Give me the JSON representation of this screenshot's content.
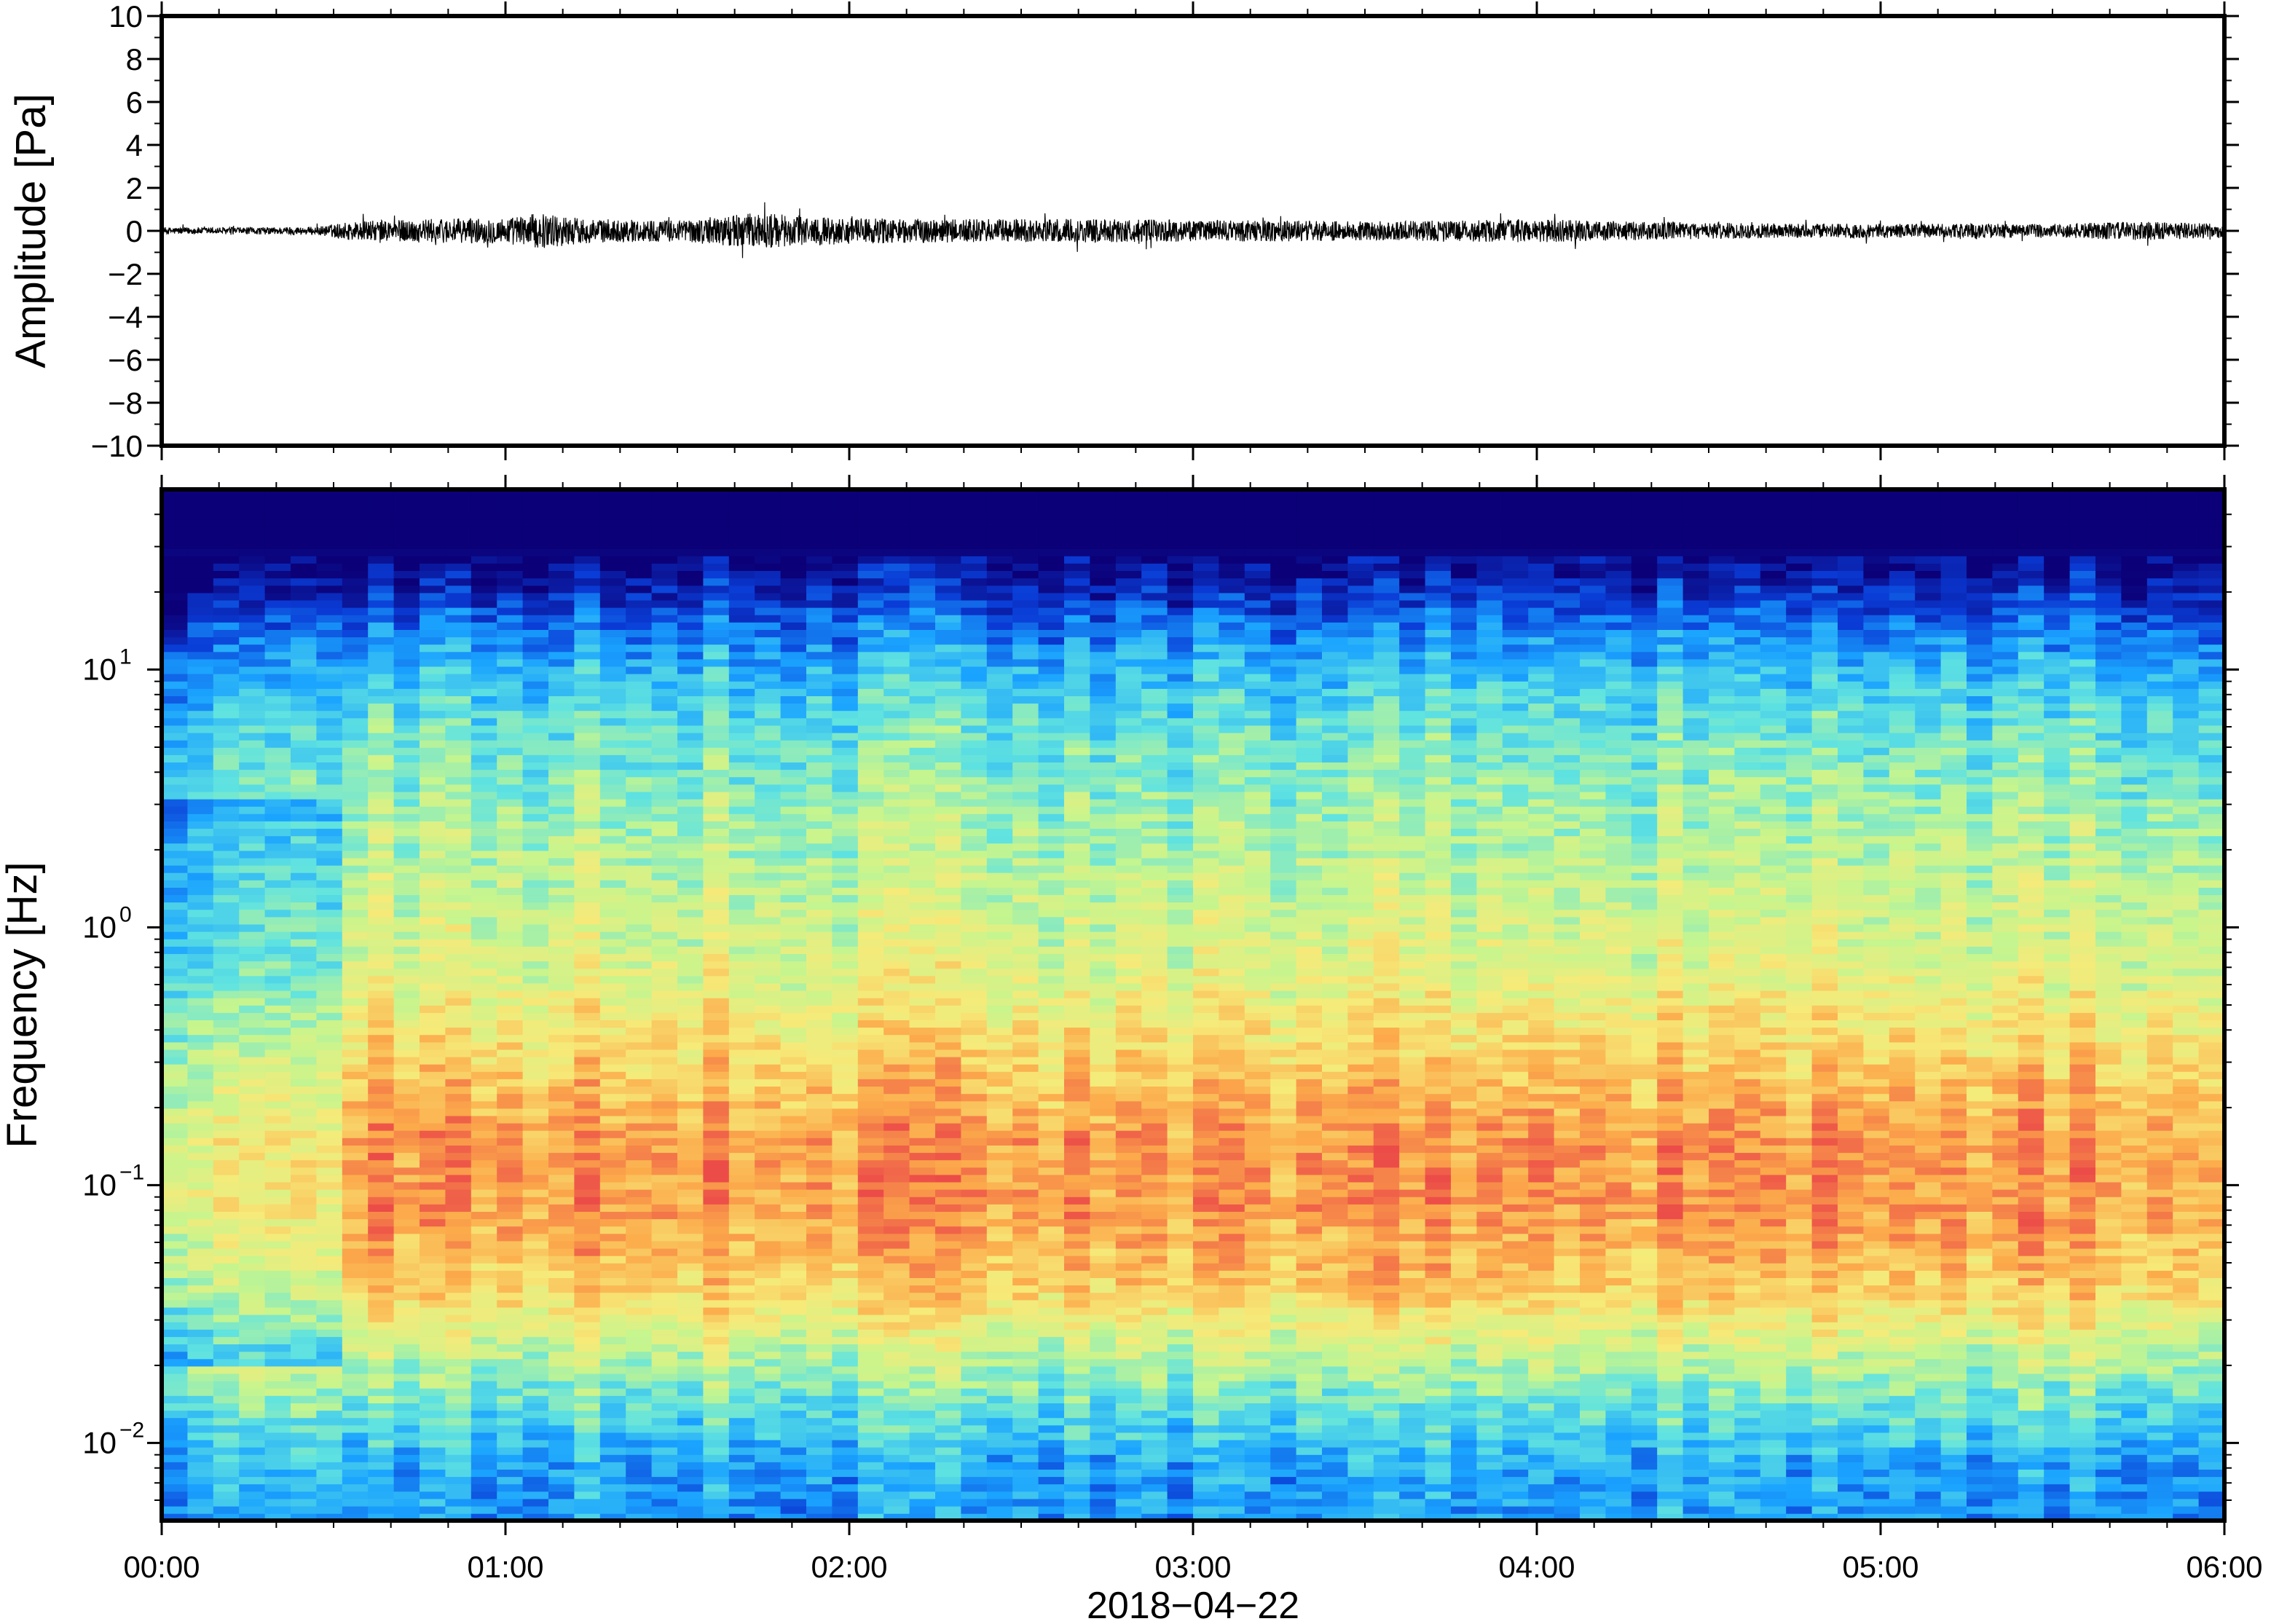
{
  "chart_data": [
    {
      "type": "line",
      "panel": "waveform",
      "ylabel": "Amplitude [Pa]",
      "ylim": [
        -10,
        10
      ],
      "yticks": [
        -10,
        -8,
        -6,
        -4,
        -2,
        0,
        2,
        4,
        6,
        8,
        10
      ],
      "ytick_labels": [
        "−10",
        "−8",
        "−6",
        "−4",
        "−2",
        "0",
        "2",
        "4",
        "6",
        "8",
        "10"
      ],
      "x_range_hours": [
        0,
        6
      ],
      "color": "#000000",
      "envelope": {
        "x_hours": [
          0.0,
          0.25,
          0.45,
          0.55,
          0.75,
          1.0,
          1.1,
          1.25,
          1.5,
          1.72,
          2.0,
          2.25,
          2.5,
          2.8,
          3.0,
          3.25,
          3.5,
          3.8,
          4.0,
          4.25,
          4.5,
          4.75,
          5.0,
          5.25,
          5.5,
          5.75,
          6.0
        ],
        "amplitude_pa": [
          0.3,
          0.3,
          0.35,
          0.8,
          1.0,
          1.1,
          1.5,
          1.0,
          0.9,
          1.5,
          1.1,
          1.0,
          1.0,
          1.0,
          0.9,
          0.9,
          0.8,
          0.9,
          1.0,
          0.8,
          0.7,
          0.6,
          0.6,
          0.6,
          0.6,
          0.8,
          0.6
        ]
      }
    },
    {
      "type": "heatmap",
      "panel": "spectrogram",
      "ylabel": "Frequency [Hz]",
      "yscale": "log",
      "ylim": [
        0.005,
        50
      ],
      "yticks": [
        0.01,
        0.1,
        1,
        10
      ],
      "ytick_labels": [
        {
          "base": "10",
          "exp": "−2"
        },
        {
          "base": "10",
          "exp": "−1"
        },
        {
          "base": "10",
          "exp": "0"
        },
        {
          "base": "10",
          "exp": "1"
        }
      ],
      "colormap": [
        "#0b0077",
        "#0a3cd6",
        "#1aa3ff",
        "#60e3e0",
        "#c6f58e",
        "#f6ea79",
        "#fcab4b",
        "#ec4c48"
      ],
      "x_range_hours": [
        0,
        6
      ],
      "xticks": [
        "00:00",
        "01:00",
        "02:00",
        "03:00",
        "04:00",
        "05:00",
        "06:00"
      ],
      "xlabel": "2018−04−22",
      "spectrum_profile": {
        "freq_hz": [
          0.005,
          0.008,
          0.012,
          0.02,
          0.04,
          0.08,
          0.15,
          0.3,
          0.6,
          1.2,
          3,
          6,
          10,
          15,
          22,
          30,
          50
        ],
        "level": [
          0.28,
          0.3,
          0.4,
          0.55,
          0.78,
          0.88,
          0.88,
          0.78,
          0.66,
          0.6,
          0.52,
          0.44,
          0.34,
          0.22,
          0.08,
          0.0,
          0.0
        ]
      }
    }
  ]
}
